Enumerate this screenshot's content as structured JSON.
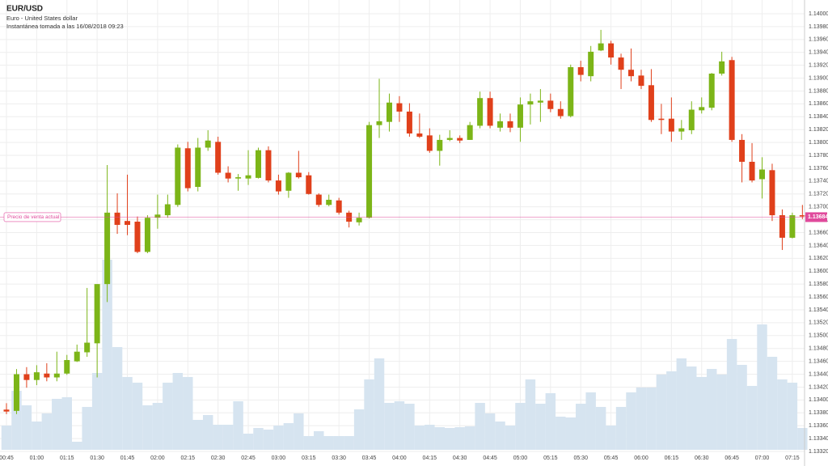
{
  "chart_data": {
    "type": "candlestick",
    "title": "EUR/USD",
    "subtitle": "Euro - United States dollar",
    "snapshot": "Instantánea tomada a las 16/08/2018 09:23",
    "current_price_label": "Precio de venta actual",
    "current_price": 1.13684,
    "up_color": "#7cb518",
    "down_color": "#e0401b",
    "volume_color": "#d6e4f0",
    "price_line_color": "#e04a9c",
    "grid": true,
    "categories": [
      "00:45",
      null,
      null,
      "01:00",
      null,
      null,
      "01:15",
      null,
      null,
      "01:30",
      null,
      null,
      "01:45",
      null,
      null,
      "02:00",
      null,
      null,
      "02:15",
      null,
      null,
      "02:30",
      null,
      null,
      "02:45",
      null,
      null,
      "03:00",
      null,
      null,
      "03:15",
      null,
      null,
      "03:30",
      null,
      null,
      "03:45",
      null,
      null,
      "04:00",
      null,
      null,
      "04:15",
      null,
      null,
      "04:30",
      null,
      null,
      "04:45",
      null,
      null,
      "05:00",
      null,
      null,
      "05:15",
      null,
      null,
      "05:30",
      null,
      null,
      "05:45",
      null,
      null,
      "06:00",
      null,
      null,
      "06:15",
      null,
      null,
      "06:30",
      null,
      null,
      "06:45",
      null,
      null,
      "07:00",
      null,
      null,
      "07:15",
      null
    ],
    "open": [
      1.13385,
      1.13383,
      1.1344,
      1.13431,
      1.13441,
      1.13435,
      1.13441,
      1.1346,
      1.13474,
      1.13488,
      1.1358,
      1.13691,
      1.13678,
      1.13677,
      1.1363,
      1.13683,
      1.13687,
      1.13703,
      1.13791,
      1.13731,
      1.13792,
      1.13801,
      1.13753,
      1.13744,
      1.13744,
      1.13745,
      1.13788,
      1.13741,
      1.13725,
      1.13753,
      1.13749,
      1.13719,
      1.13703,
      1.1371,
      1.13691,
      1.13676,
      1.13683,
      1.13827,
      1.13832,
      1.13861,
      1.13848,
      1.13814,
      1.13811,
      1.13787,
      1.13804,
      1.13807,
      1.13804,
      1.13826,
      1.13869,
      1.13823,
      1.13833,
      1.13823,
      1.13859,
      1.13862,
      1.13865,
      1.13852,
      1.13841,
      1.13917,
      1.13903,
      1.13943,
      1.13954,
      1.13932,
      1.13913,
      1.13904,
      1.13889,
      1.13837,
      1.13837,
      1.13817,
      1.13819,
      1.1385,
      1.13854,
      1.13907,
      1.13928,
      1.13804,
      1.1377,
      1.13743,
      1.13757,
      1.13687,
      1.13652,
      1.13687
    ],
    "high": [
      1.13395,
      1.13448,
      1.13451,
      1.13454,
      1.13457,
      1.13475,
      1.1347,
      1.13486,
      1.13574,
      1.1358,
      1.13765,
      1.13721,
      1.1375,
      1.13685,
      1.13687,
      1.13719,
      1.13719,
      1.13797,
      1.13801,
      1.13807,
      1.13819,
      1.13809,
      1.13763,
      1.13751,
      1.13788,
      1.13792,
      1.13794,
      1.1375,
      1.13754,
      1.13787,
      1.13754,
      1.13721,
      1.13719,
      1.13714,
      1.13694,
      1.13691,
      1.13832,
      1.13899,
      1.13876,
      1.13872,
      1.13861,
      1.13845,
      1.13822,
      1.13812,
      1.13819,
      1.13811,
      1.13832,
      1.13879,
      1.13879,
      1.13845,
      1.13845,
      1.1387,
      1.13876,
      1.13883,
      1.13876,
      1.13864,
      1.13921,
      1.13927,
      1.1395,
      1.13975,
      1.13958,
      1.13938,
      1.13946,
      1.13913,
      1.13914,
      1.1386,
      1.1387,
      1.13835,
      1.13864,
      1.1387,
      1.13908,
      1.13941,
      1.13933,
      1.13813,
      1.13799,
      1.13777,
      1.13767,
      1.13696,
      1.13691,
      1.13703
    ],
    "low": [
      1.13378,
      1.13378,
      1.13419,
      1.13423,
      1.13429,
      1.13429,
      1.13439,
      1.13459,
      1.13467,
      1.13435,
      1.13552,
      1.13658,
      1.13656,
      1.13628,
      1.13628,
      1.13666,
      1.13683,
      1.137,
      1.13724,
      1.13724,
      1.13787,
      1.1375,
      1.13738,
      1.13725,
      1.13734,
      1.13744,
      1.13738,
      1.13719,
      1.13714,
      1.13744,
      1.13719,
      1.137,
      1.13701,
      1.13688,
      1.13668,
      1.13671,
      1.13682,
      1.13807,
      1.13817,
      1.13832,
      1.13809,
      1.13807,
      1.13784,
      1.13764,
      1.13802,
      1.13799,
      1.13804,
      1.13822,
      1.13822,
      1.13817,
      1.13816,
      1.13801,
      1.13828,
      1.13832,
      1.13847,
      1.13837,
      1.13839,
      1.13895,
      1.13895,
      1.13942,
      1.13921,
      1.13883,
      1.13895,
      1.13883,
      1.13832,
      1.13813,
      1.13801,
      1.13804,
      1.13813,
      1.13845,
      1.1385,
      1.13904,
      1.13801,
      1.13738,
      1.13738,
      1.13713,
      1.13678,
      1.13633,
      1.13651,
      1.13681
    ],
    "close": [
      1.13382,
      1.1344,
      1.13431,
      1.13443,
      1.13435,
      1.13441,
      1.13462,
      1.13475,
      1.13489,
      1.1358,
      1.13691,
      1.13672,
      1.13672,
      1.1363,
      1.13683,
      1.13688,
      1.13704,
      1.13792,
      1.13729,
      1.13792,
      1.13803,
      1.13753,
      1.13744,
      1.13746,
      1.13749,
      1.13788,
      1.13741,
      1.13724,
      1.13753,
      1.13746,
      1.1372,
      1.13703,
      1.13711,
      1.13691,
      1.13677,
      1.13683,
      1.13827,
      1.13833,
      1.13862,
      1.13848,
      1.13814,
      1.13809,
      1.13787,
      1.13804,
      1.13807,
      1.13803,
      1.13827,
      1.13869,
      1.13826,
      1.13833,
      1.13823,
      1.13859,
      1.13864,
      1.13865,
      1.13852,
      1.13841,
      1.13917,
      1.13905,
      1.13941,
      1.13954,
      1.13932,
      1.13913,
      1.13903,
      1.13888,
      1.13835,
      1.13835,
      1.13817,
      1.13822,
      1.13851,
      1.13855,
      1.13907,
      1.13926,
      1.13804,
      1.1377,
      1.13741,
      1.13758,
      1.13687,
      1.13652,
      1.13687,
      1.13685
    ],
    "volume": [
      30,
      73,
      55,
      35,
      45,
      63,
      65,
      10,
      53,
      95,
      235,
      127,
      90,
      83,
      55,
      58,
      83,
      95,
      90,
      37,
      43,
      31,
      31,
      60,
      20,
      27,
      25,
      30,
      33,
      45,
      17,
      23,
      17,
      17,
      17,
      50,
      87,
      113,
      58,
      60,
      57,
      30,
      31,
      28,
      27,
      28,
      29,
      58,
      45,
      35,
      30,
      58,
      87,
      57,
      70,
      41,
      40,
      57,
      71,
      53,
      30,
      53,
      71,
      77,
      77,
      93,
      97,
      113,
      103,
      90,
      100,
      93,
      137,
      105,
      79,
      155,
      115,
      87,
      83,
      27
    ],
    "ylim": [
      1.1332,
      1.14
    ],
    "yticks": [
      {
        "value": 1.1332,
        "label": "1.13320"
      },
      {
        "value": 1.1334,
        "label": "1.13340"
      },
      {
        "value": 1.1336,
        "label": "1.13360"
      },
      {
        "value": 1.1338,
        "label": "1.13380"
      },
      {
        "value": 1.134,
        "label": "1.13400"
      },
      {
        "value": 1.1342,
        "label": "1.13420"
      },
      {
        "value": 1.1344,
        "label": "1.13440"
      },
      {
        "value": 1.1346,
        "label": "1.13460"
      },
      {
        "value": 1.1348,
        "label": "1.13480"
      },
      {
        "value": 1.135,
        "label": "1.13500"
      },
      {
        "value": 1.1352,
        "label": "1.13520"
      },
      {
        "value": 1.1354,
        "label": "1.13540"
      },
      {
        "value": 1.1356,
        "label": "1.13560"
      },
      {
        "value": 1.1358,
        "label": "1.13580"
      },
      {
        "value": 1.136,
        "label": "1.13600"
      },
      {
        "value": 1.1362,
        "label": "1.13620"
      },
      {
        "value": 1.1364,
        "label": "1.13640"
      },
      {
        "value": 1.1366,
        "label": "1.13660"
      },
      {
        "value": 1.1368,
        "label": "1.13680"
      },
      {
        "value": 1.137,
        "label": "1.13700"
      },
      {
        "value": 1.1372,
        "label": "1.13720"
      },
      {
        "value": 1.1374,
        "label": "1.13740"
      },
      {
        "value": 1.1376,
        "label": "1.13760"
      },
      {
        "value": 1.1378,
        "label": "1.13780"
      },
      {
        "value": 1.138,
        "label": "1.13800"
      },
      {
        "value": 1.1382,
        "label": "1.13820"
      },
      {
        "value": 1.1384,
        "label": "1.13840"
      },
      {
        "value": 1.1386,
        "label": "1.13860"
      },
      {
        "value": 1.1388,
        "label": "1.13880"
      },
      {
        "value": 1.139,
        "label": "1.13900"
      },
      {
        "value": 1.1392,
        "label": "1.13920"
      },
      {
        "value": 1.1394,
        "label": "1.13940"
      },
      {
        "value": 1.1396,
        "label": "1.13960"
      },
      {
        "value": 1.1398,
        "label": "1.13980"
      },
      {
        "value": 1.14,
        "label": "1.14000"
      }
    ]
  }
}
